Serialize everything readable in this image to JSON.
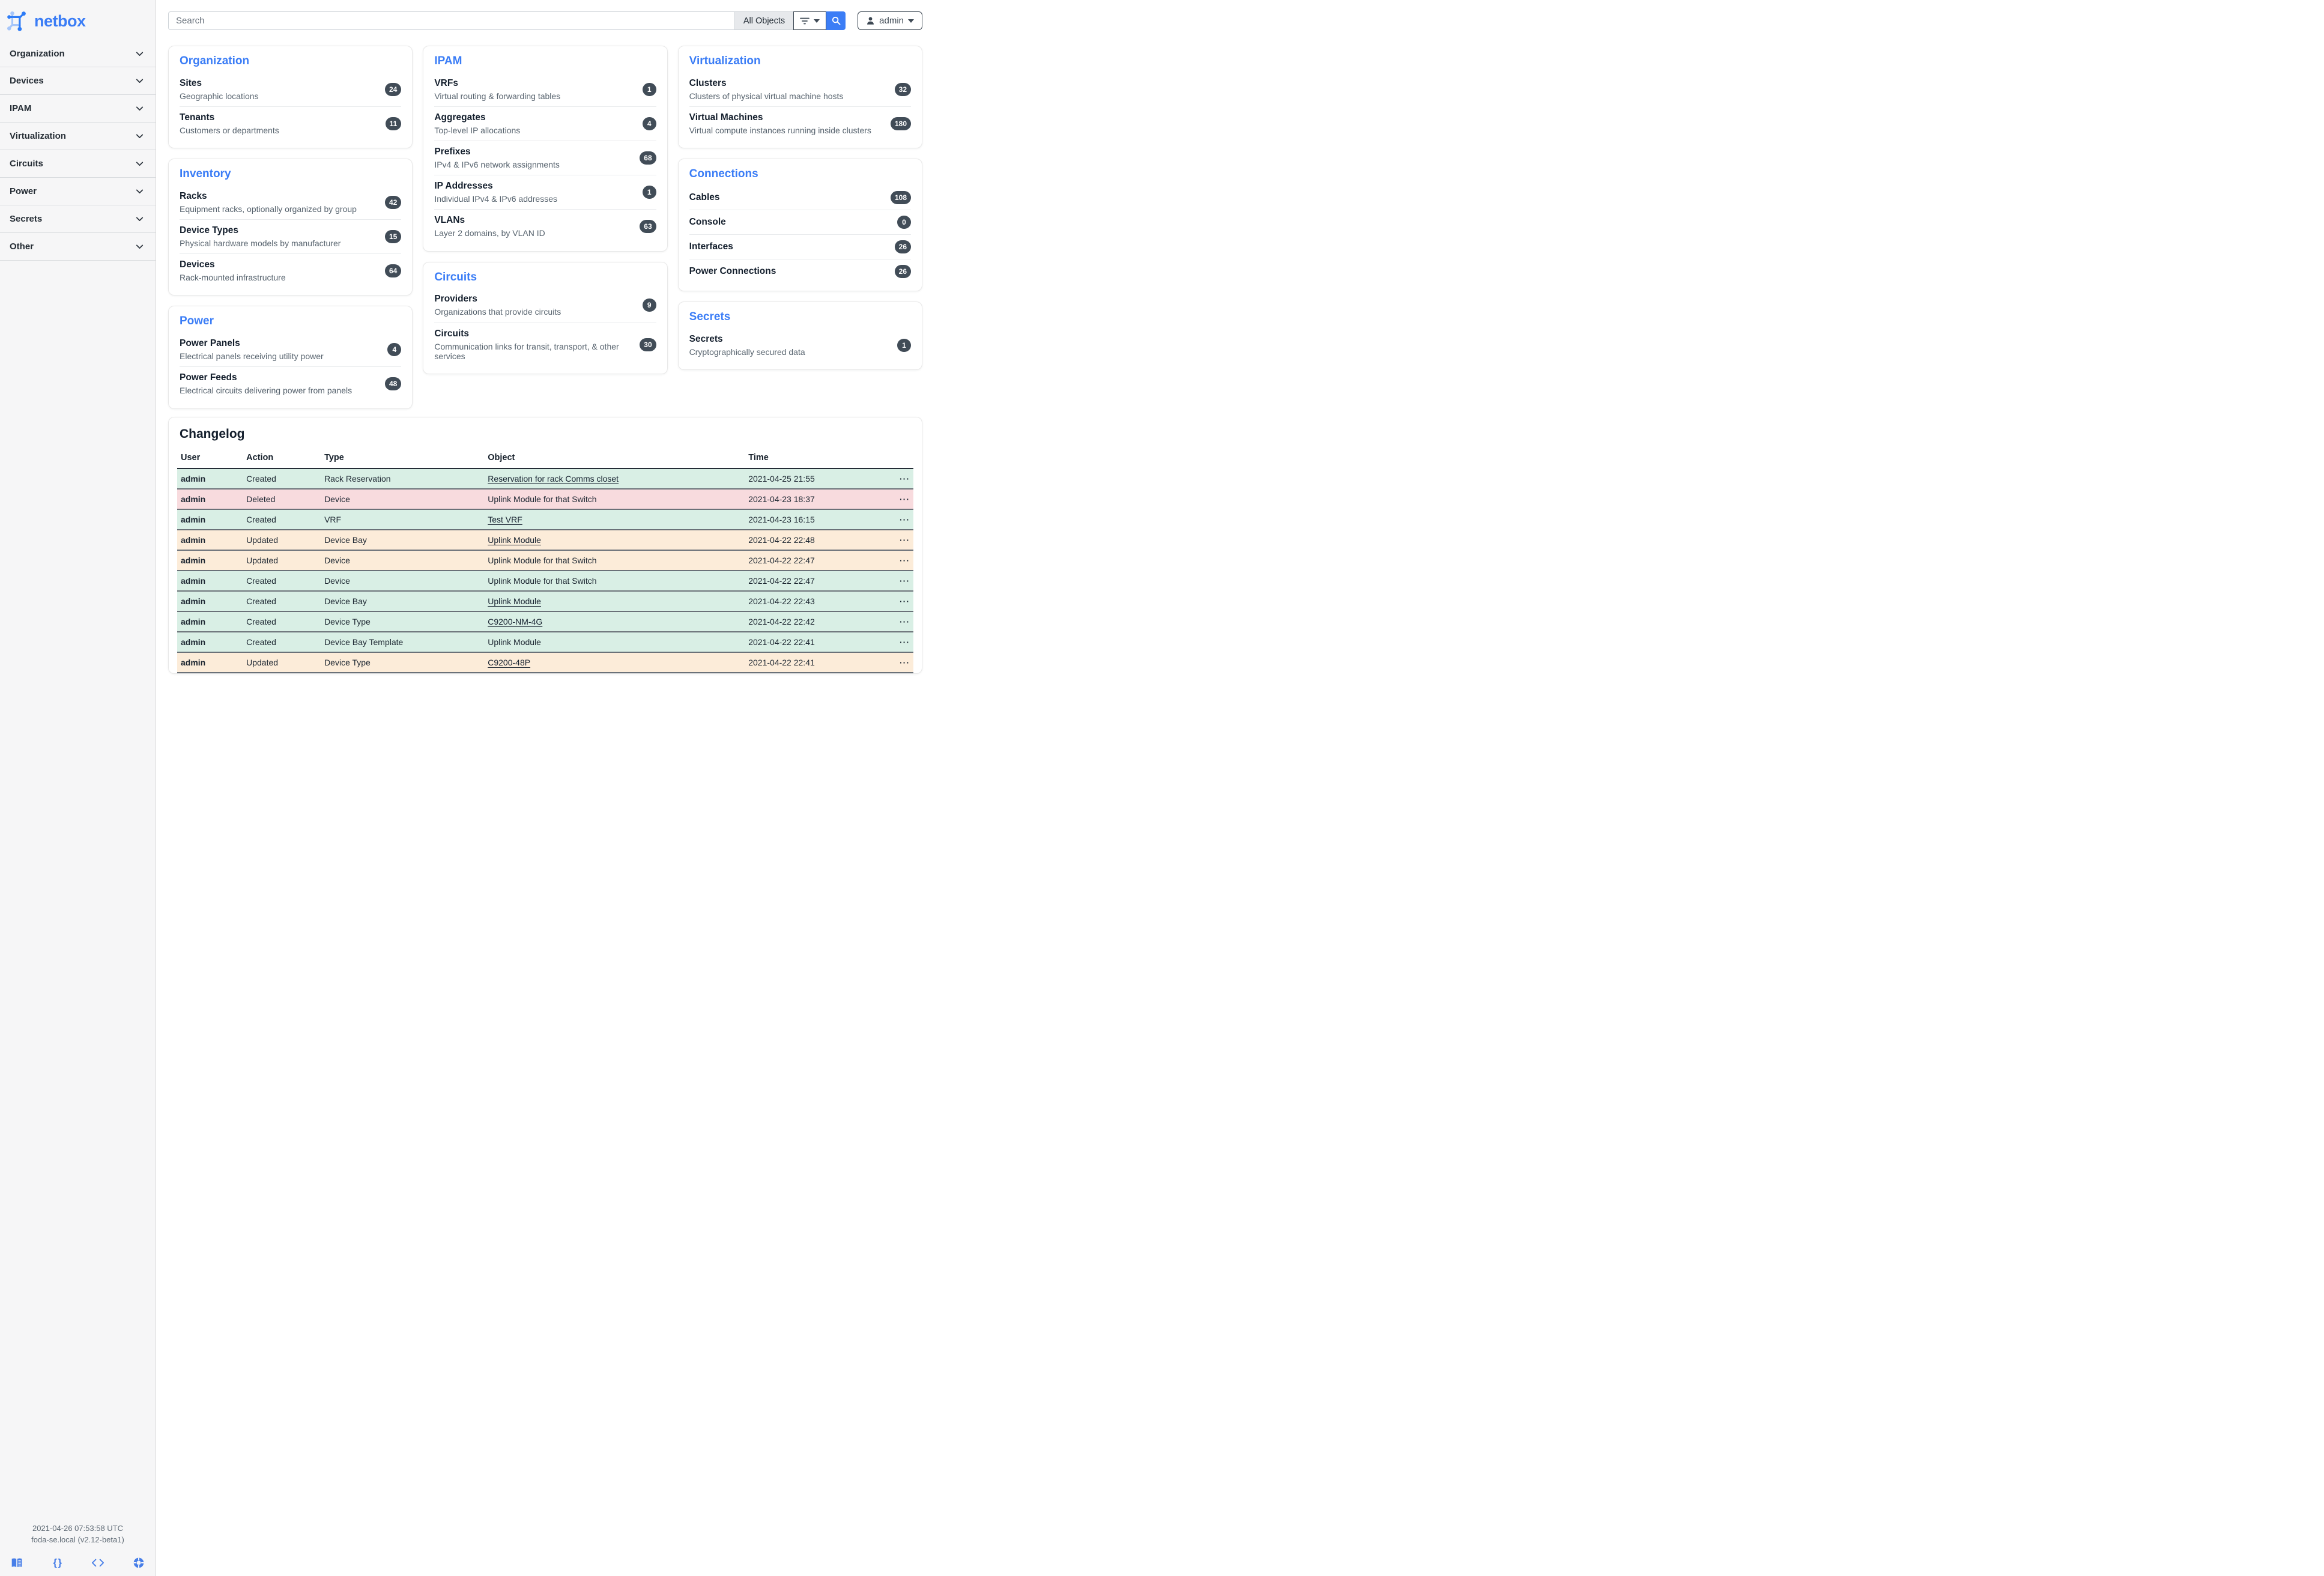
{
  "sidebar": {
    "logo_text": "netbox",
    "nav": [
      {
        "label": "Organization"
      },
      {
        "label": "Devices"
      },
      {
        "label": "IPAM"
      },
      {
        "label": "Virtualization"
      },
      {
        "label": "Circuits"
      },
      {
        "label": "Power"
      },
      {
        "label": "Secrets"
      },
      {
        "label": "Other"
      }
    ],
    "footer_time": "2021-04-26 07:53:58 UTC",
    "footer_host": "foda-se.local (v2.12-beta1)",
    "footer_icons": [
      "docs-book-icon",
      "api-braces-icon",
      "code-icon",
      "community-lifering-icon"
    ]
  },
  "topbar": {
    "search_placeholder": "Search",
    "scope_label": "All Objects",
    "user_label": "admin"
  },
  "cards": [
    {
      "title": "Organization",
      "items": [
        {
          "name": "Sites",
          "desc": "Geographic locations",
          "count": "24"
        },
        {
          "name": "Tenants",
          "desc": "Customers or departments",
          "count": "11"
        }
      ]
    },
    {
      "title": "Inventory",
      "items": [
        {
          "name": "Racks",
          "desc": "Equipment racks, optionally organized by group",
          "count": "42"
        },
        {
          "name": "Device Types",
          "desc": "Physical hardware models by manufacturer",
          "count": "15"
        },
        {
          "name": "Devices",
          "desc": "Rack-mounted infrastructure",
          "count": "64"
        }
      ]
    },
    {
      "title": "Power",
      "items": [
        {
          "name": "Power Panels",
          "desc": "Electrical panels receiving utility power",
          "count": "4"
        },
        {
          "name": "Power Feeds",
          "desc": "Electrical circuits delivering power from panels",
          "count": "48"
        }
      ]
    },
    {
      "title": "IPAM",
      "items": [
        {
          "name": "VRFs",
          "desc": "Virtual routing & forwarding tables",
          "count": "1"
        },
        {
          "name": "Aggregates",
          "desc": "Top-level IP allocations",
          "count": "4"
        },
        {
          "name": "Prefixes",
          "desc": "IPv4 & IPv6 network assignments",
          "count": "68"
        },
        {
          "name": "IP Addresses",
          "desc": "Individual IPv4 & IPv6 addresses",
          "count": "1"
        },
        {
          "name": "VLANs",
          "desc": "Layer 2 domains, by VLAN ID",
          "count": "63"
        }
      ]
    },
    {
      "title": "Circuits",
      "items": [
        {
          "name": "Providers",
          "desc": "Organizations that provide circuits",
          "count": "9"
        },
        {
          "name": "Circuits",
          "desc": "Communication links for transit, transport, & other services",
          "count": "30"
        }
      ]
    },
    {
      "title": "Virtualization",
      "items": [
        {
          "name": "Clusters",
          "desc": "Clusters of physical virtual machine hosts",
          "count": "32"
        },
        {
          "name": "Virtual Machines",
          "desc": "Virtual compute instances running inside clusters",
          "count": "180"
        }
      ]
    },
    {
      "title": "Connections",
      "items": [
        {
          "name": "Cables",
          "count": "108"
        },
        {
          "name": "Console",
          "count": "0"
        },
        {
          "name": "Interfaces",
          "count": "26"
        },
        {
          "name": "Power Connections",
          "count": "26"
        }
      ]
    },
    {
      "title": "Secrets",
      "items": [
        {
          "name": "Secrets",
          "desc": "Cryptographically secured data",
          "count": "1"
        }
      ]
    }
  ],
  "changelog": {
    "title": "Changelog",
    "columns": [
      "User",
      "Action",
      "Type",
      "Object",
      "Time"
    ],
    "row_actions_glyph": "···",
    "rows": [
      {
        "user": "admin",
        "action": "Created",
        "type": "Rack Reservation",
        "object": "Reservation for rack Comms closet",
        "object_is_link": true,
        "time": "2021-04-25 21:55",
        "status": "created"
      },
      {
        "user": "admin",
        "action": "Deleted",
        "type": "Device",
        "object": "Uplink Module for that Switch",
        "object_is_link": false,
        "time": "2021-04-23 18:37",
        "status": "deleted"
      },
      {
        "user": "admin",
        "action": "Created",
        "type": "VRF",
        "object": "Test VRF",
        "object_is_link": true,
        "time": "2021-04-23 16:15",
        "status": "created"
      },
      {
        "user": "admin",
        "action": "Updated",
        "type": "Device Bay",
        "object": "Uplink Module",
        "object_is_link": true,
        "time": "2021-04-22 22:48",
        "status": "updated"
      },
      {
        "user": "admin",
        "action": "Updated",
        "type": "Device",
        "object": "Uplink Module for that Switch",
        "object_is_link": false,
        "time": "2021-04-22 22:47",
        "status": "updated"
      },
      {
        "user": "admin",
        "action": "Created",
        "type": "Device",
        "object": "Uplink Module for that Switch",
        "object_is_link": false,
        "time": "2021-04-22 22:47",
        "status": "created"
      },
      {
        "user": "admin",
        "action": "Created",
        "type": "Device Bay",
        "object": "Uplink Module",
        "object_is_link": true,
        "time": "2021-04-22 22:43",
        "status": "created"
      },
      {
        "user": "admin",
        "action": "Created",
        "type": "Device Type",
        "object": "C9200-NM-4G",
        "object_is_link": true,
        "time": "2021-04-22 22:42",
        "status": "created"
      },
      {
        "user": "admin",
        "action": "Created",
        "type": "Device Bay Template",
        "object": "Uplink Module",
        "object_is_link": false,
        "time": "2021-04-22 22:41",
        "status": "created"
      },
      {
        "user": "admin",
        "action": "Updated",
        "type": "Device Type",
        "object": "C9200-48P",
        "object_is_link": true,
        "time": "2021-04-22 22:41",
        "status": "updated"
      }
    ]
  },
  "colors": {
    "accent_blue": "#3b7df6",
    "badge_bg": "#414c57",
    "row_created_bg": "#d9efe5",
    "row_deleted_bg": "#f8dbde",
    "row_updated_bg": "#fcecd9",
    "sidebar_bg": "#f6f6f7"
  }
}
